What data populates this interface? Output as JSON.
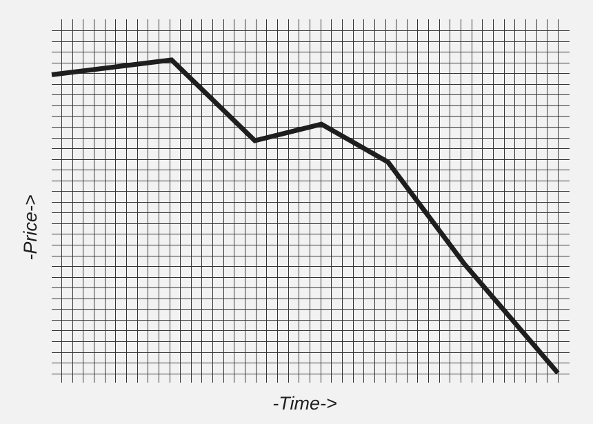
{
  "chart_data": {
    "type": "line",
    "title": "",
    "xlabel": "-Time->",
    "ylabel": "-Price->",
    "grid": true,
    "legend": "none",
    "xlim": [
      0,
      7.6
    ],
    "ylim": [
      0,
      10
    ],
    "series": [
      {
        "color": "#1e1e1e",
        "x": [
          0,
          1.8,
          3.05,
          4.05,
          5.05,
          6.2,
          7.6
        ],
        "y": [
          9.05,
          9.5,
          7.05,
          7.55,
          6.4,
          3.3,
          0
        ]
      }
    ]
  },
  "colors": {
    "background": "#f2f2f2",
    "grid": "#333333",
    "line": "#1e1e1e",
    "text": "#1e1e1e"
  }
}
